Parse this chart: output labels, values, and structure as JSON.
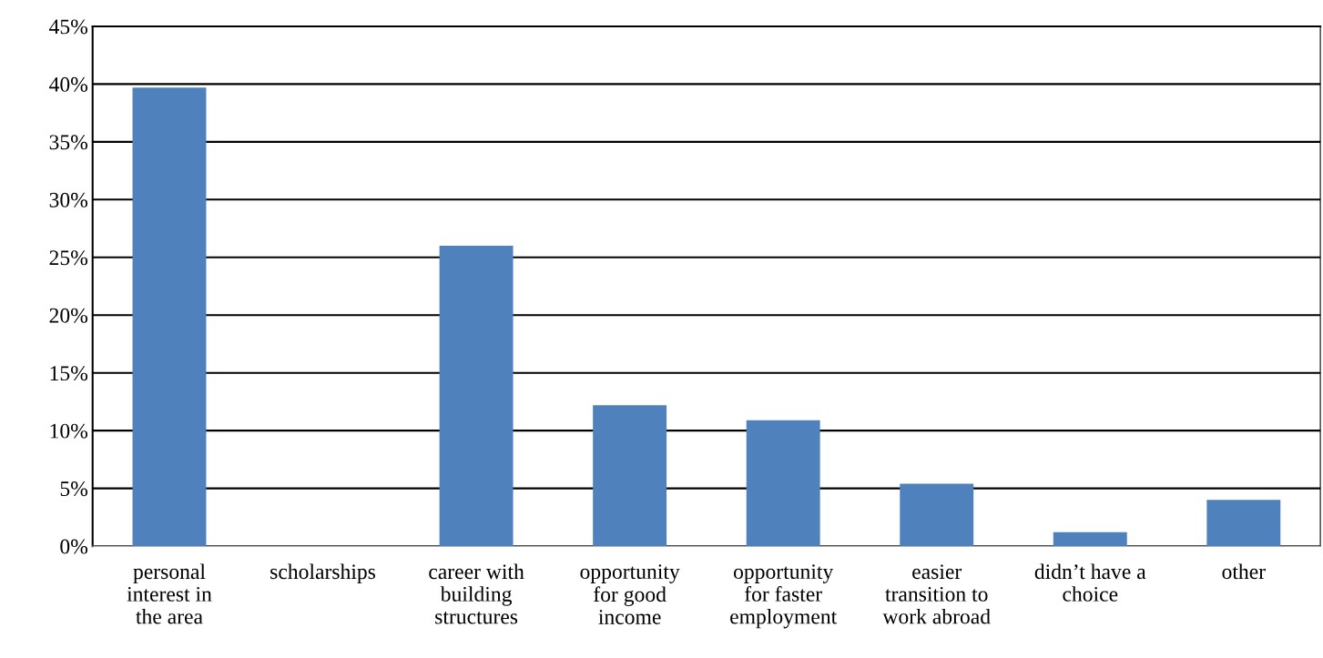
{
  "chart_data": {
    "type": "bar",
    "categories": [
      "personal\ninterest in\nthe area",
      "scholarships",
      "career with\nbuilding\nstructures",
      "opportunity\nfor good\nincome",
      "opportunity\nfor faster\nemployment",
      "easier\ntransition to\nwork abroad",
      "didn’t have a\nchoice",
      "other"
    ],
    "values": [
      39.7,
      0,
      26.0,
      12.2,
      10.9,
      5.4,
      1.2,
      4.0
    ],
    "color": "#4f81bd",
    "ylim": [
      0,
      45
    ],
    "yticks": [
      {
        "value": 0,
        "label": "0%"
      },
      {
        "value": 5,
        "label": "5%"
      },
      {
        "value": 10,
        "label": "10%"
      },
      {
        "value": 15,
        "label": "15%"
      },
      {
        "value": 20,
        "label": "20%"
      },
      {
        "value": 25,
        "label": "25%"
      },
      {
        "value": 30,
        "label": "30%"
      },
      {
        "value": 35,
        "label": "35%"
      },
      {
        "value": 40,
        "label": "40%"
      },
      {
        "value": 45,
        "label": "45%"
      }
    ],
    "grid": "y"
  }
}
